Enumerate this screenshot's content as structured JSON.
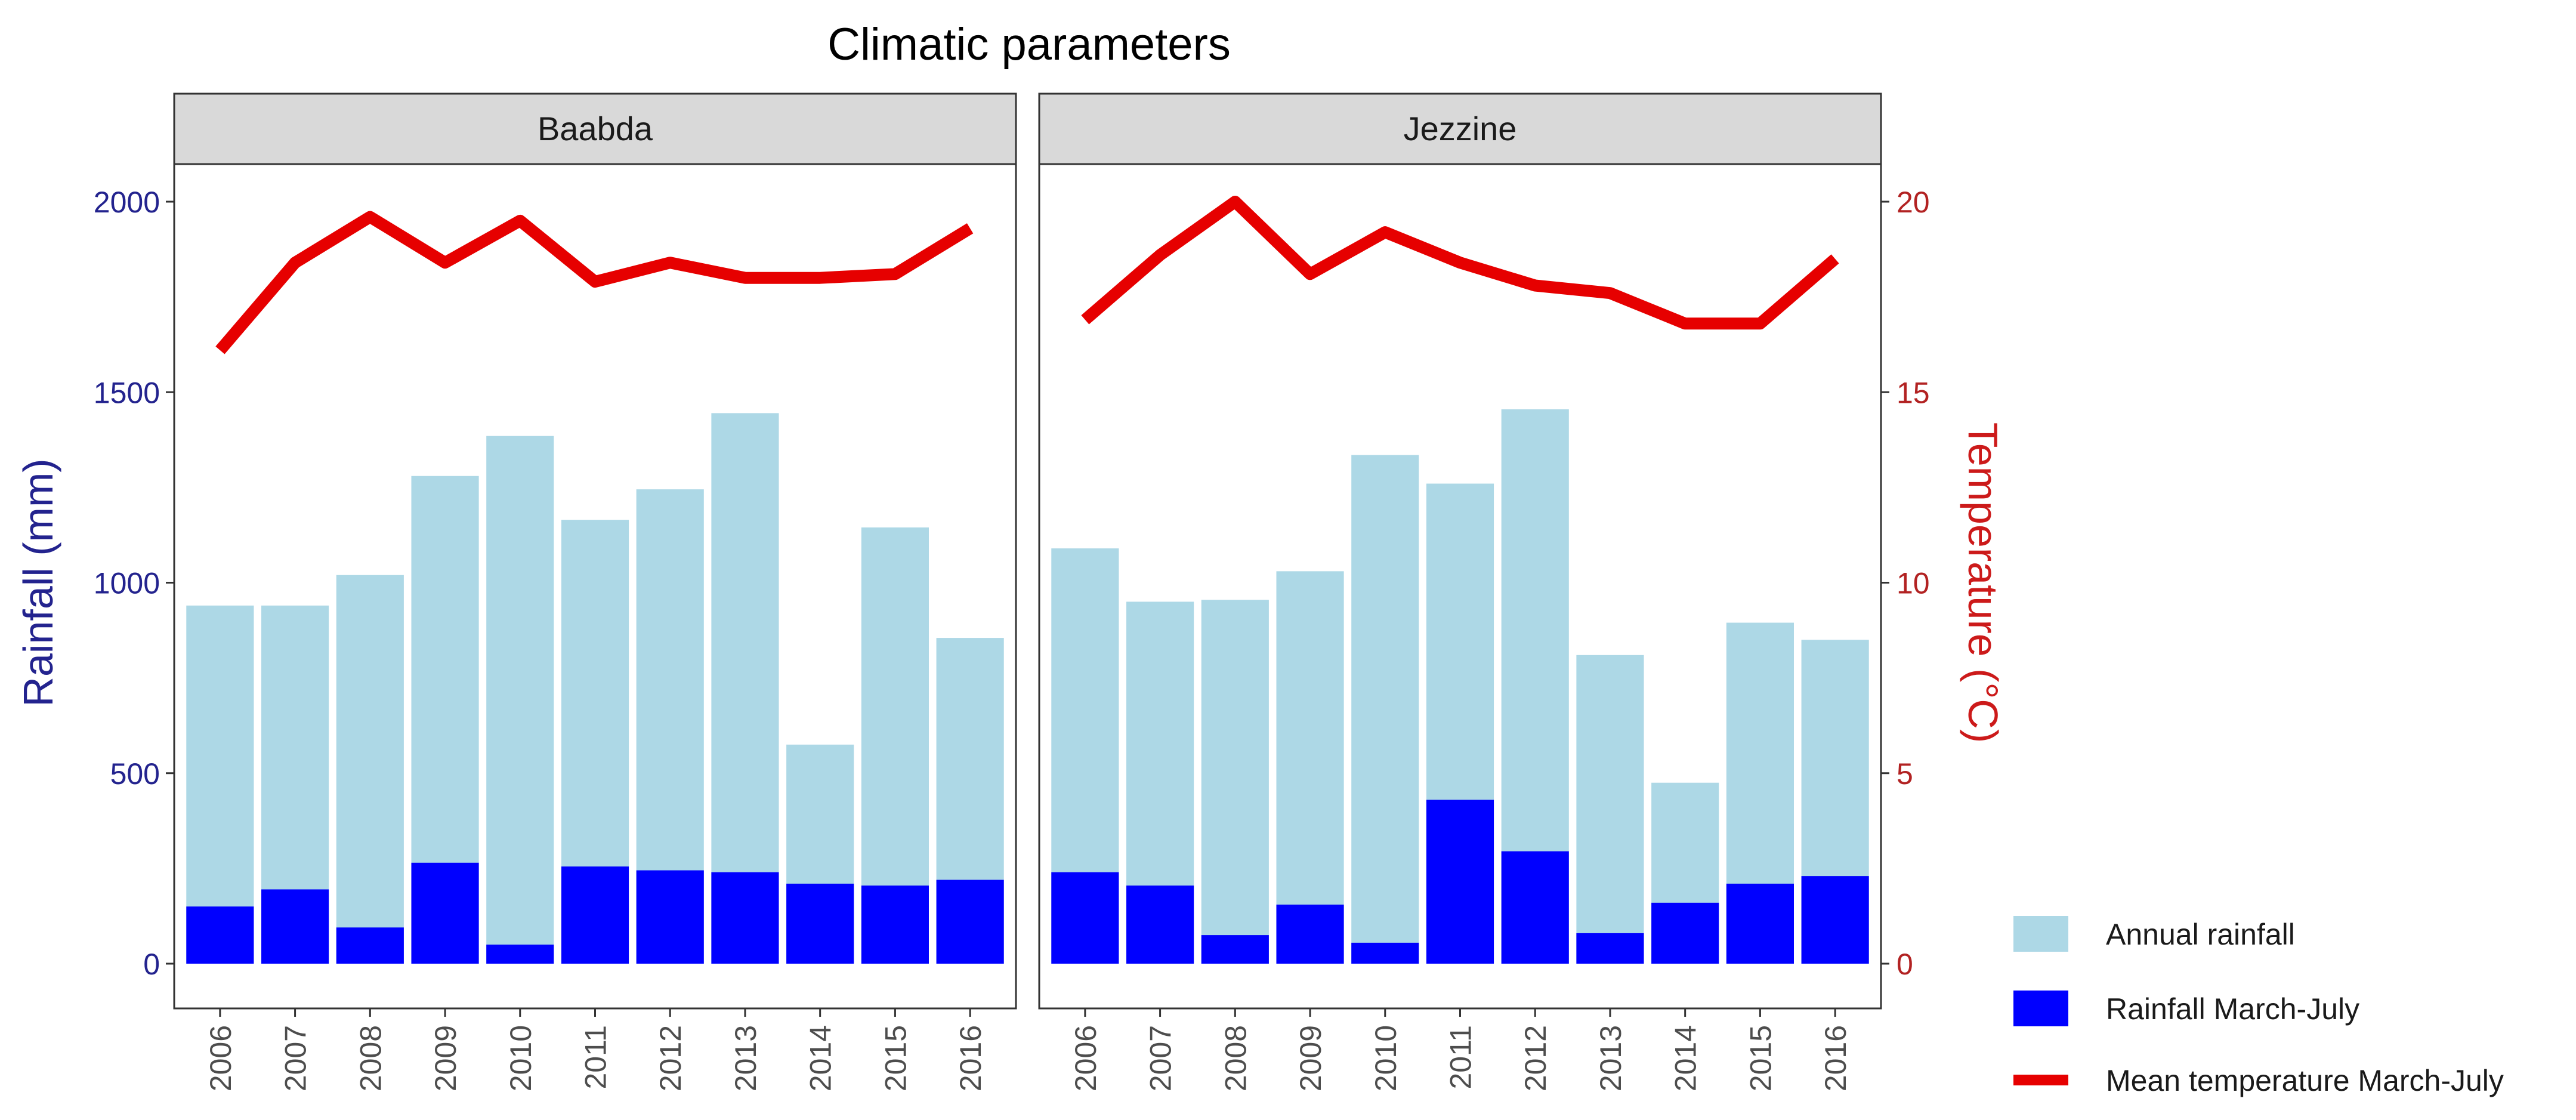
{
  "chart_data": {
    "type": "bar",
    "title": "Climatic parameters",
    "panels": [
      "Baabda",
      "Jezzine"
    ],
    "categories": [
      "2006",
      "2007",
      "2008",
      "2009",
      "2010",
      "2011",
      "2012",
      "2013",
      "2014",
      "2015",
      "2016"
    ],
    "y_left": {
      "label": "Rainfall (mm)",
      "ylim": [
        0,
        2000
      ],
      "ticks": [
        0,
        500,
        1000,
        1500,
        2000
      ]
    },
    "y_right": {
      "label": "Temperature (°C)",
      "ylim": [
        0,
        20
      ],
      "ticks": [
        0,
        5,
        10,
        15,
        20
      ]
    },
    "legend": {
      "position": "bottom-right"
    },
    "series": [
      {
        "name": "Annual rainfall",
        "kind": "bar",
        "axis": "left",
        "color": "#add8e6",
        "values": {
          "Baabda": [
            940,
            940,
            1020,
            1280,
            1385,
            1165,
            1245,
            1445,
            575,
            1145,
            855
          ],
          "Jezzine": [
            1090,
            950,
            955,
            1030,
            1335,
            1260,
            1455,
            810,
            475,
            895,
            850
          ]
        }
      },
      {
        "name": "Rainfall March-July",
        "kind": "bar",
        "axis": "left",
        "color": "#0000ff",
        "values": {
          "Baabda": [
            150,
            195,
            95,
            265,
            50,
            255,
            245,
            240,
            210,
            205,
            220
          ],
          "Jezzine": [
            240,
            205,
            75,
            155,
            55,
            430,
            295,
            80,
            160,
            210,
            230
          ]
        }
      },
      {
        "name": "Mean temperature March-July",
        "kind": "line",
        "axis": "right",
        "color": "#e60000",
        "values": {
          "Baabda": [
            16.1,
            18.4,
            19.6,
            18.4,
            19.5,
            17.9,
            18.4,
            18.0,
            18.0,
            18.1,
            19.3
          ],
          "Jezzine": [
            16.9,
            18.6,
            20.0,
            18.1,
            19.2,
            18.4,
            17.8,
            17.6,
            16.8,
            16.8,
            18.5
          ]
        }
      }
    ],
    "colors": {
      "strip_fill": "#d9d9d9",
      "panel_border": "#333333",
      "tick_color": "#333333"
    }
  }
}
